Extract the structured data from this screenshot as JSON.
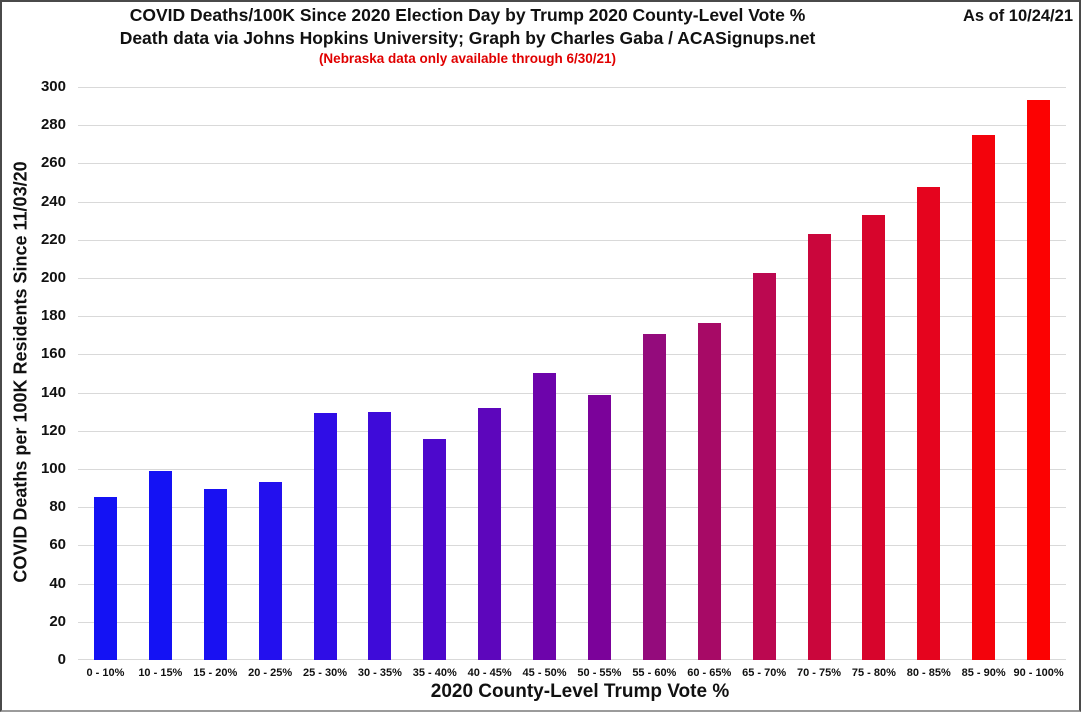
{
  "header": {
    "title_line1": "COVID Deaths/100K Since 2020 Election Day by Trump 2020 County-Level Vote %",
    "title_line2": "Death data via Johns Hopkins University; Graph by Charles Gaba / ACASignups.net",
    "note": "(Nebraska data only available through 6/30/21)",
    "note_color": "#e00000",
    "as_of": "As of 10/24/21"
  },
  "chart_data": {
    "type": "bar",
    "title": "COVID Deaths/100K Since 2020 Election Day by Trump 2020 County-Level Vote %",
    "subtitle": "Death data via Johns Hopkins University; Graph by Charles Gaba / ACASignups.net",
    "annotation": "(Nebraska data only available through 6/30/21)",
    "xlabel": "2020 County-Level Trump Vote %",
    "ylabel": "COVID Deaths per 100K Residents Since 11/03/20",
    "categories": [
      "0 - 10%",
      "10 - 15%",
      "15 - 20%",
      "20 - 25%",
      "25 - 30%",
      "30 - 35%",
      "35 - 40%",
      "40 - 45%",
      "45 - 50%",
      "50 - 55%",
      "55 - 60%",
      "60 - 65%",
      "65 - 70%",
      "70 - 75%",
      "75 - 80%",
      "80 - 85%",
      "85 - 90%",
      "90 - 100%"
    ],
    "values": [
      85.5,
      99,
      89.5,
      93,
      129.5,
      130,
      115.5,
      132,
      150.5,
      139,
      170.5,
      176.5,
      202.5,
      223,
      233,
      247.5,
      275,
      293
    ],
    "bar_colors": [
      "#1412f4",
      "#1412f4",
      "#1911f2",
      "#2310ee",
      "#2f0de6",
      "#3e0bd9",
      "#4d08cc",
      "#5d06bc",
      "#6d04ab",
      "#7b029a",
      "#940b7c",
      "#a70a66",
      "#bb0850",
      "#ca063c",
      "#d7052c",
      "#e5041e",
      "#f3030c",
      "#fc0202"
    ],
    "ylim": [
      0,
      300
    ],
    "ytick_step": 20,
    "grid": true,
    "gridline_color": "#d9d9d9",
    "legend": false
  }
}
